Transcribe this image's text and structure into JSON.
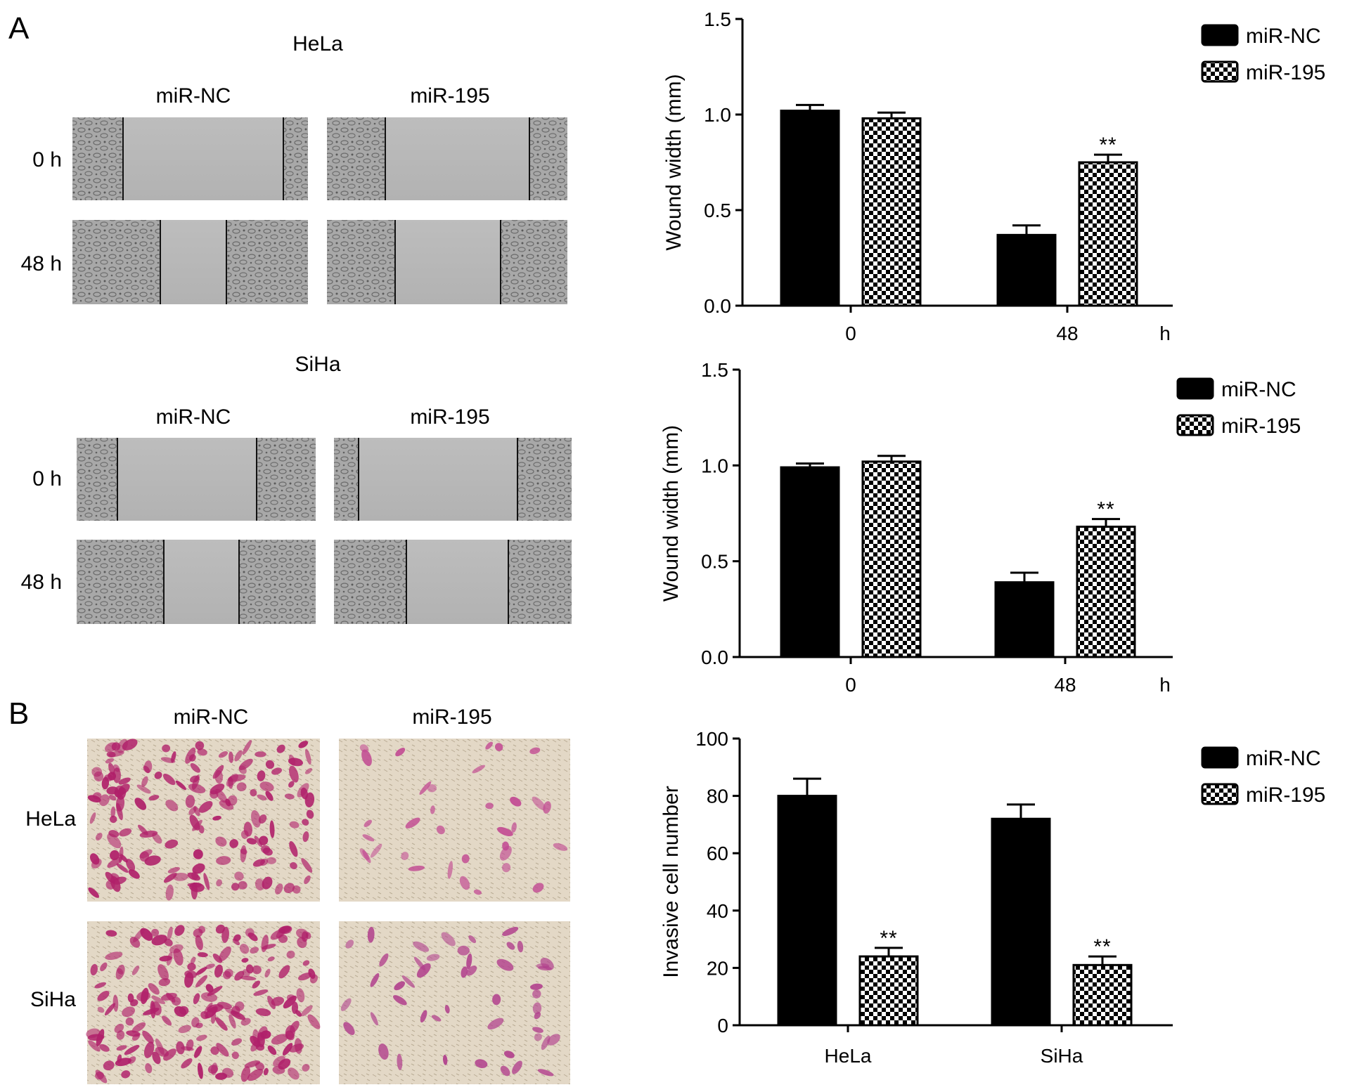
{
  "panels": {
    "A": {
      "letter": "A",
      "hela": {
        "title": "HeLa",
        "col_labels": [
          "miR-NC",
          "miR-195"
        ],
        "row_labels": [
          "0 h",
          "48 h"
        ]
      },
      "siha": {
        "title": "SiHa",
        "col_labels": [
          "miR-NC",
          "miR-195"
        ],
        "row_labels": [
          "0 h",
          "48 h"
        ]
      }
    },
    "B": {
      "letter": "B",
      "col_labels": [
        "miR-NC",
        "miR-195"
      ],
      "row_labels": [
        "HeLa",
        "SiHa"
      ]
    }
  },
  "colors": {
    "micrograph_gray": "#b9b9b9",
    "micrograph_gray_dark": "#8c8c8c",
    "stain_bg": "#e6dccb",
    "stain_cell": "#b0206a",
    "bar_black": "#000000"
  },
  "chart_data": [
    {
      "type": "bar",
      "title": "",
      "categories": [
        "0",
        "48"
      ],
      "x_unit": "h",
      "ylabel": "Wound width (mm)",
      "ylim": [
        0,
        1.5
      ],
      "yticks": [
        "0.0",
        "0.5",
        "1.0",
        "1.5"
      ],
      "legend_position": "top-right",
      "series": [
        {
          "name": "miR-NC",
          "pattern": "solid",
          "values": [
            1.02,
            0.37
          ],
          "errors": [
            0.03,
            0.05
          ],
          "annotations": [
            "",
            ""
          ]
        },
        {
          "name": "miR-195",
          "pattern": "checker",
          "values": [
            0.98,
            0.75
          ],
          "errors": [
            0.03,
            0.04
          ],
          "annotations": [
            "",
            "**"
          ]
        }
      ]
    },
    {
      "type": "bar",
      "title": "",
      "categories": [
        "0",
        "48"
      ],
      "x_unit": "h",
      "ylabel": "Wound width (mm)",
      "ylim": [
        0,
        1.5
      ],
      "yticks": [
        "0.0",
        "0.5",
        "1.0",
        "1.5"
      ],
      "legend_position": "top-right",
      "series": [
        {
          "name": "miR-NC",
          "pattern": "solid",
          "values": [
            0.99,
            0.39
          ],
          "errors": [
            0.02,
            0.05
          ],
          "annotations": [
            "",
            ""
          ]
        },
        {
          "name": "miR-195",
          "pattern": "checker",
          "values": [
            1.02,
            0.68
          ],
          "errors": [
            0.03,
            0.04
          ],
          "annotations": [
            "",
            "**"
          ]
        }
      ]
    },
    {
      "type": "bar",
      "title": "",
      "categories": [
        "HeLa",
        "SiHa"
      ],
      "x_unit": "",
      "ylabel": "Invasive cell number",
      "ylim": [
        0,
        100
      ],
      "yticks": [
        "0",
        "20",
        "40",
        "60",
        "80",
        "100"
      ],
      "legend_position": "top-right",
      "series": [
        {
          "name": "miR-NC",
          "pattern": "solid",
          "values": [
            80,
            72
          ],
          "errors": [
            6,
            5
          ],
          "annotations": [
            "",
            ""
          ]
        },
        {
          "name": "miR-195",
          "pattern": "checker",
          "values": [
            24,
            21
          ],
          "errors": [
            3,
            3
          ],
          "annotations": [
            "**",
            "**"
          ]
        }
      ]
    }
  ]
}
